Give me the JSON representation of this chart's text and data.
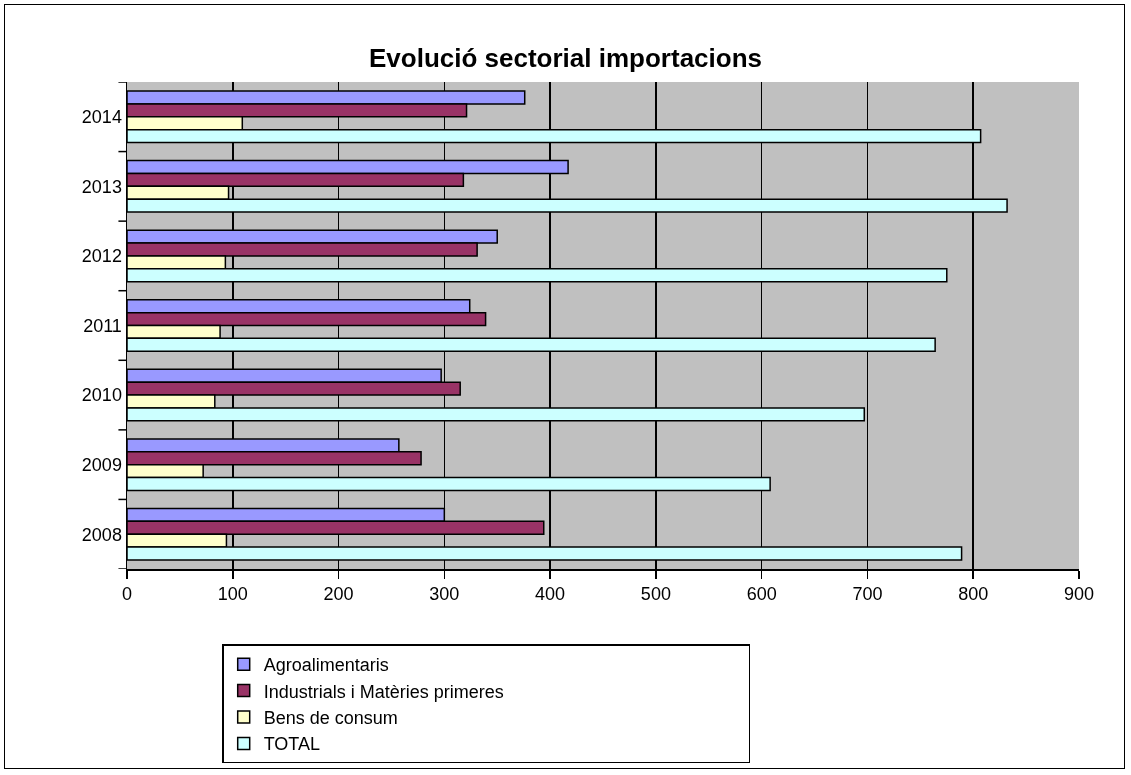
{
  "chart_data": {
    "type": "bar",
    "orientation": "horizontal",
    "title": "Evolució sectorial importacions",
    "categories": [
      "2014",
      "2013",
      "2012",
      "2011",
      "2010",
      "2009",
      "2008"
    ],
    "series": [
      {
        "name": "Agroalimentaris",
        "color": "#9999ff",
        "values": [
          376,
          417,
          350,
          324,
          297,
          257,
          300
        ]
      },
      {
        "name": "Industrials i Matèries primeres",
        "color": "#993366",
        "values": [
          321,
          318,
          331,
          339,
          315,
          278,
          394
        ]
      },
      {
        "name": "Bens de consum",
        "color": "#ffffcc",
        "values": [
          109,
          96,
          93,
          88,
          83,
          72,
          94
        ]
      },
      {
        "name": "TOTAL",
        "color": "#ccffff",
        "values": [
          807,
          832,
          775,
          764,
          697,
          608,
          789
        ]
      }
    ],
    "xlim": [
      0,
      900
    ],
    "xticks": [
      0,
      100,
      200,
      300,
      400,
      500,
      600,
      700,
      800,
      900
    ],
    "grid": "x",
    "legend": "bottom"
  }
}
